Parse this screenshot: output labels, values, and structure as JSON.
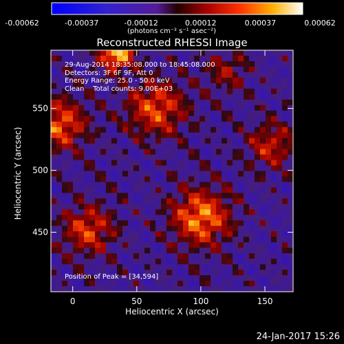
{
  "chart_data": {
    "type": "heatmap",
    "title": "Reconstructed RHESSI Image",
    "xlabel": "Heliocentric X (arcsec)",
    "ylabel": "Heliocentric Y (arcsec)",
    "xlim": [
      -17,
      172
    ],
    "ylim": [
      402,
      597
    ],
    "x_ticks": [
      0,
      50,
      100,
      150
    ],
    "y_ticks": [
      450,
      500,
      550
    ],
    "colorbar": {
      "range": [
        -0.00062,
        0.00062
      ],
      "tick_labels": [
        "-0.00062",
        "-0.00037",
        "-0.00012",
        "0.00012",
        "0.00037",
        "0.00062"
      ],
      "units": "(photons cm⁻² s⁻¹ asec⁻²)"
    },
    "info_lines": [
      "29-Aug-2014 18:35:08.000 to 18:45:08.000",
      "Detectors: 3F 6F 9F, Att 0",
      "Energy Range: 25.0 - 50.0 keV",
      "Clean    Total counts: 9.00E+03"
    ],
    "peak_label": "Position of Peak = [34,594]",
    "peak": {
      "x": 34,
      "y": 594
    },
    "sources": [
      {
        "x": 34,
        "y": 594,
        "amplitude": 1.0,
        "radius": 9
      },
      {
        "x": -10,
        "y": 537,
        "amplitude": 0.7,
        "radius": 14
      },
      {
        "x": 12,
        "y": 452,
        "amplitude": 0.6,
        "radius": 14
      },
      {
        "x": 65,
        "y": 550,
        "amplitude": 0.65,
        "radius": 16
      },
      {
        "x": 100,
        "y": 462,
        "amplitude": 0.8,
        "radius": 16
      },
      {
        "x": 155,
        "y": 520,
        "amplitude": 0.5,
        "radius": 13
      },
      {
        "x": 120,
        "y": 580,
        "amplitude": 0.35,
        "radius": 12
      }
    ]
  },
  "footer": {
    "date": "24-Jan-2017 15:26"
  }
}
